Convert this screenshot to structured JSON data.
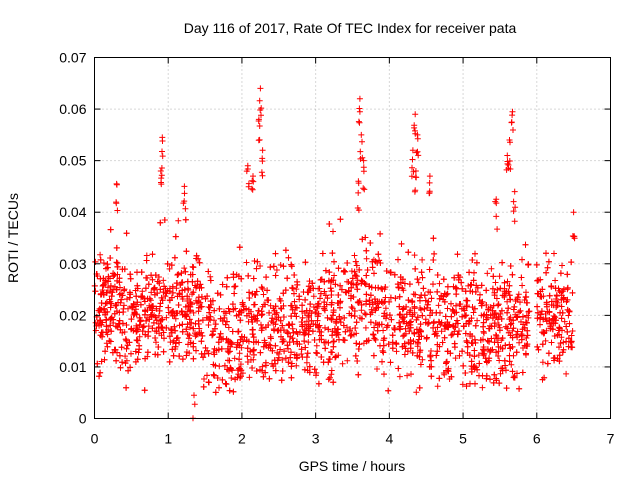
{
  "chart_data": {
    "type": "scatter",
    "title": "Day 116 of 2017, Rate Of TEC Index for receiver pata",
    "xlabel": "GPS time / hours",
    "ylabel": "ROTI / TECUs",
    "xlim": [
      0,
      7
    ],
    "ylim": [
      0,
      0.07
    ],
    "xticks": [
      "0",
      "1",
      "2",
      "3",
      "4",
      "5",
      "6",
      "7"
    ],
    "yticks": [
      "0",
      "0.01",
      "0.02",
      "0.03",
      "0.04",
      "0.05",
      "0.06",
      "0.07"
    ],
    "grid": true,
    "marker": "+",
    "color": "#ff0000",
    "data_range_x": [
      0,
      6.5
    ],
    "gap": [
      5.9,
      6.0
    ],
    "series": [
      {
        "name": "ROTI",
        "description_points": "dense cloud mostly between 0.006 and 0.035 TECU/s across 0-6.5 h",
        "peaks": [
          {
            "x": 0.92,
            "y": 0.0545
          },
          {
            "x": 0.9,
            "y": 0.048
          },
          {
            "x": 1.22,
            "y": 0.045
          },
          {
            "x": 2.08,
            "y": 0.049
          },
          {
            "x": 2.25,
            "y": 0.064
          },
          {
            "x": 2.23,
            "y": 0.058
          },
          {
            "x": 2.28,
            "y": 0.052
          },
          {
            "x": 2.15,
            "y": 0.047
          },
          {
            "x": 3.6,
            "y": 0.062
          },
          {
            "x": 3.62,
            "y": 0.055
          },
          {
            "x": 3.65,
            "y": 0.05
          },
          {
            "x": 3.58,
            "y": 0.046
          },
          {
            "x": 4.35,
            "y": 0.059
          },
          {
            "x": 4.38,
            "y": 0.055
          },
          {
            "x": 4.32,
            "y": 0.052
          },
          {
            "x": 4.36,
            "y": 0.048
          },
          {
            "x": 4.55,
            "y": 0.047
          },
          {
            "x": 5.45,
            "y": 0.0425
          },
          {
            "x": 5.6,
            "y": 0.051
          },
          {
            "x": 5.63,
            "y": 0.054
          },
          {
            "x": 5.67,
            "y": 0.0595
          },
          {
            "x": 5.7,
            "y": 0.044
          },
          {
            "x": 0.3,
            "y": 0.0455
          },
          {
            "x": 6.5,
            "y": 0.04
          },
          {
            "x": 1.35,
            "y": 0.0045
          }
        ]
      }
    ]
  }
}
